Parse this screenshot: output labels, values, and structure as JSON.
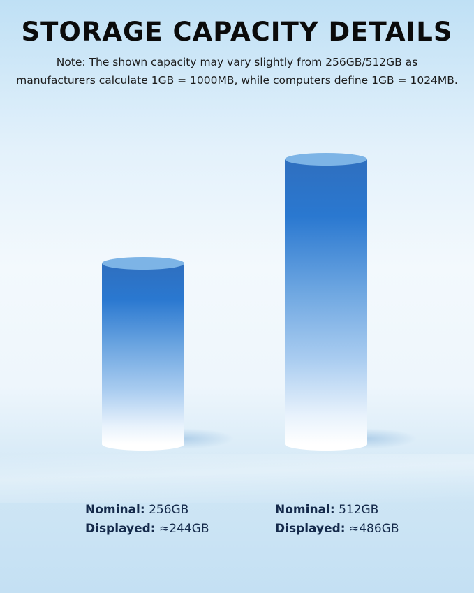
{
  "title": "STORAGE CAPACITY DETAILS",
  "note_line1": "Note: The shown capacity may vary slightly from 256GB/512GB as",
  "note_line2": "manufacturers calculate 1GB = 1000MB, while computers define 1GB = 1024MB.",
  "chart_data": {
    "type": "bar",
    "categories": [
      "256GB",
      "512GB"
    ],
    "values": [
      256,
      512
    ],
    "style": "3d-cylinder",
    "colors": {
      "top": "#7db4e6",
      "body_top": "#2f6fbf",
      "body_bottom": "#ffffff"
    },
    "labels": [
      {
        "nominal_label": "Nominal:",
        "nominal": "256GB",
        "displayed_label": "Displayed:",
        "displayed": "≈244GB"
      },
      {
        "nominal_label": "Nominal:",
        "nominal": "512GB",
        "displayed_label": "Displayed:",
        "displayed": "≈486GB"
      }
    ]
  }
}
